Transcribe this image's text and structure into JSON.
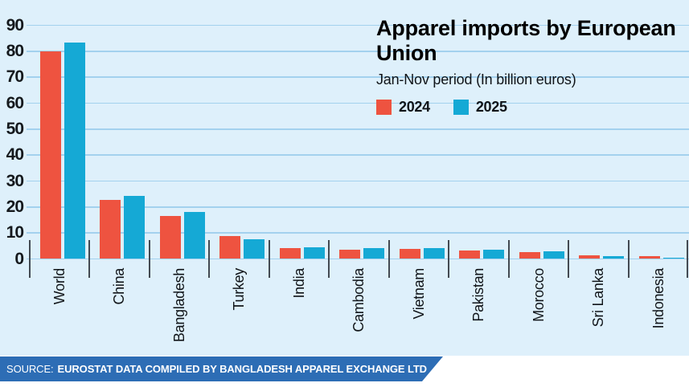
{
  "title": "Apparel imports by European Union",
  "subtitle": "Jan-Nov period (In billion euros)",
  "source": {
    "prefix": "SOURCE:",
    "text": "EUROSTAT DATA COMPILED BY BANGLADESH APPAREL EXCHANGE LTD"
  },
  "colors": {
    "background": "#def0fb",
    "gridline": "#a3d1ee",
    "tick": "#434a52",
    "banner": "#2d6db5",
    "series_2024": "#ee5340",
    "series_2025": "#15a9d5"
  },
  "chart_data": {
    "type": "bar",
    "title": "Apparel imports by European Union",
    "subtitle": "Jan-Nov period (In billion euros)",
    "ylabel": "billion euros",
    "xlabel": "",
    "categories": [
      "World",
      "China",
      "Bangladesh",
      "Turkey",
      "India",
      "Cambodia",
      "Vietnam",
      "Pakistan",
      "Morocco",
      "Sri Lanka",
      "Indonesia"
    ],
    "series": [
      {
        "name": "2024",
        "color": "#ee5340",
        "values": [
          80.0,
          22.7,
          16.5,
          8.7,
          4.1,
          3.6,
          3.8,
          3.2,
          2.5,
          1.3,
          1.0
        ]
      },
      {
        "name": "2025",
        "color": "#15a9d5",
        "values": [
          83.2,
          24.3,
          18.1,
          7.7,
          4.4,
          4.1,
          4.2,
          3.5,
          2.8,
          1.2,
          0.6
        ]
      }
    ],
    "ylim": [
      0,
      90
    ],
    "ytick_step": 10,
    "yticks": [
      0,
      10,
      20,
      30,
      40,
      50,
      60,
      70,
      80,
      90
    ],
    "grid": true,
    "legend_position": "top-right"
  }
}
